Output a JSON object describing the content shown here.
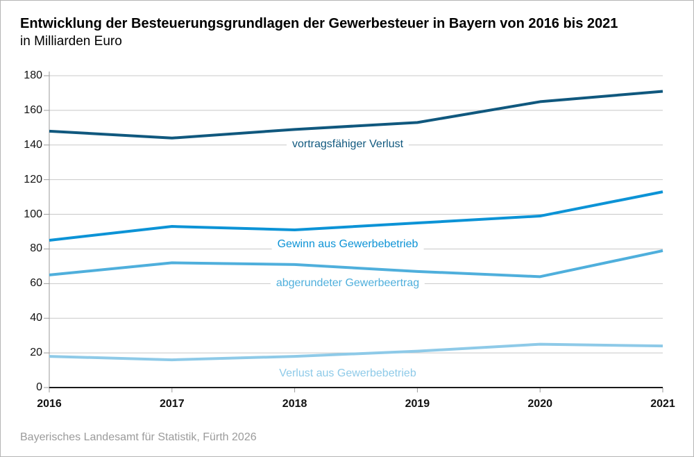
{
  "header": {
    "title": "Entwicklung der Besteuerungsgrundlagen der Gewerbesteuer in Bayern von 2016 bis 2021",
    "subtitle": "in Milliarden Euro"
  },
  "footer": {
    "source": "Bayerisches Landesamt für Statistik, Fürth 2026"
  },
  "chart_data": {
    "type": "line",
    "categories": [
      "2016",
      "2017",
      "2018",
      "2019",
      "2020",
      "2021"
    ],
    "series": [
      {
        "name": "vortragsfähiger Verlust",
        "color": "#10587e",
        "values": [
          148,
          144,
          149,
          153,
          165,
          171
        ]
      },
      {
        "name": "Gewinn aus Gewerbebetrieb",
        "color": "#0c93d6",
        "values": [
          85,
          93,
          91,
          95,
          99,
          113
        ]
      },
      {
        "name": "abgerundeter Gewerbeertrag",
        "color": "#4fafdc",
        "values": [
          65,
          72,
          71,
          67,
          64,
          79
        ]
      },
      {
        "name": "Verlust aus Gewerbebetrieb",
        "color": "#8ecae8",
        "values": [
          18,
          16,
          18,
          21,
          25,
          24
        ]
      }
    ],
    "ylim": [
      0,
      180
    ],
    "yticks": [
      0,
      20,
      40,
      60,
      80,
      100,
      120,
      140,
      160,
      180
    ],
    "grid": "horizontal",
    "legend_position": "inline-labels",
    "title": "Entwicklung der Besteuerungsgrundlagen der Gewerbesteuer in Bayern von 2016 bis 2021",
    "subtitle_unit": "in Milliarden Euro"
  },
  "colors": {
    "grid": "#c8c8c8",
    "axis": "#9a9a9a",
    "baseline": "#1a1a1a",
    "border": "#b4b4b4",
    "source_text": "#9b9b9b"
  }
}
